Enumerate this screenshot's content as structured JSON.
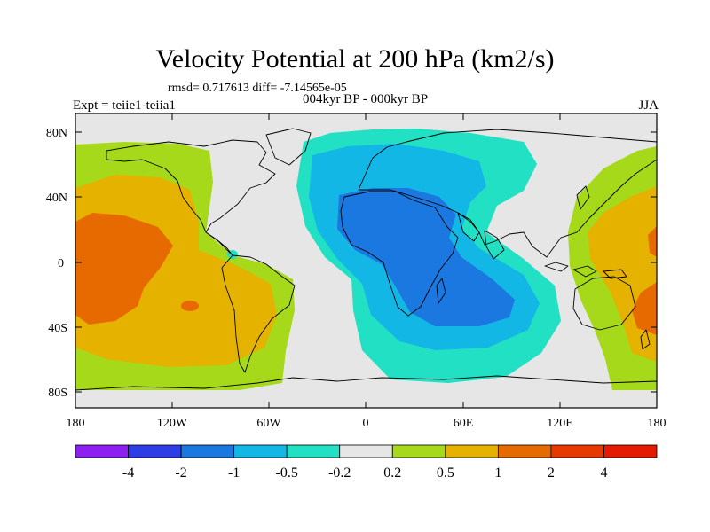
{
  "title": "Velocity Potential at 200 hPa (km2/s)",
  "stats_text": "rmsd= 0.717613 diff= -7.14565e-05",
  "expt_text": "Expt = teiie1-teiia1",
  "subtitle": "004kyr BP - 000kyr BP",
  "season": "JJA",
  "map": {
    "projection": "cylindrical-equidistant",
    "lon_range": [
      -180,
      180
    ],
    "lat_range": [
      -90,
      90
    ],
    "lat_tick_labels": [
      "80N",
      "40N",
      "0",
      "40S",
      "80S"
    ],
    "lon_tick_labels": [
      "180",
      "120W",
      "60W",
      "0",
      "60E",
      "120E",
      "180"
    ],
    "background_color": "#e6e6e6",
    "coastline_color": "#000000"
  },
  "colorbar": {
    "levels": [
      "-4",
      "-2",
      "-1",
      "-0.5",
      "-0.2",
      "0.2",
      "0.5",
      "1",
      "2",
      "4"
    ],
    "colors": [
      "#8d1ff0",
      "#2e3ee6",
      "#1a78e0",
      "#13b7e6",
      "#22e0c4",
      "#e6e6e6",
      "#a6d91a",
      "#e6b200",
      "#e66a00",
      "#e63a00",
      "#e61a00"
    ]
  }
}
